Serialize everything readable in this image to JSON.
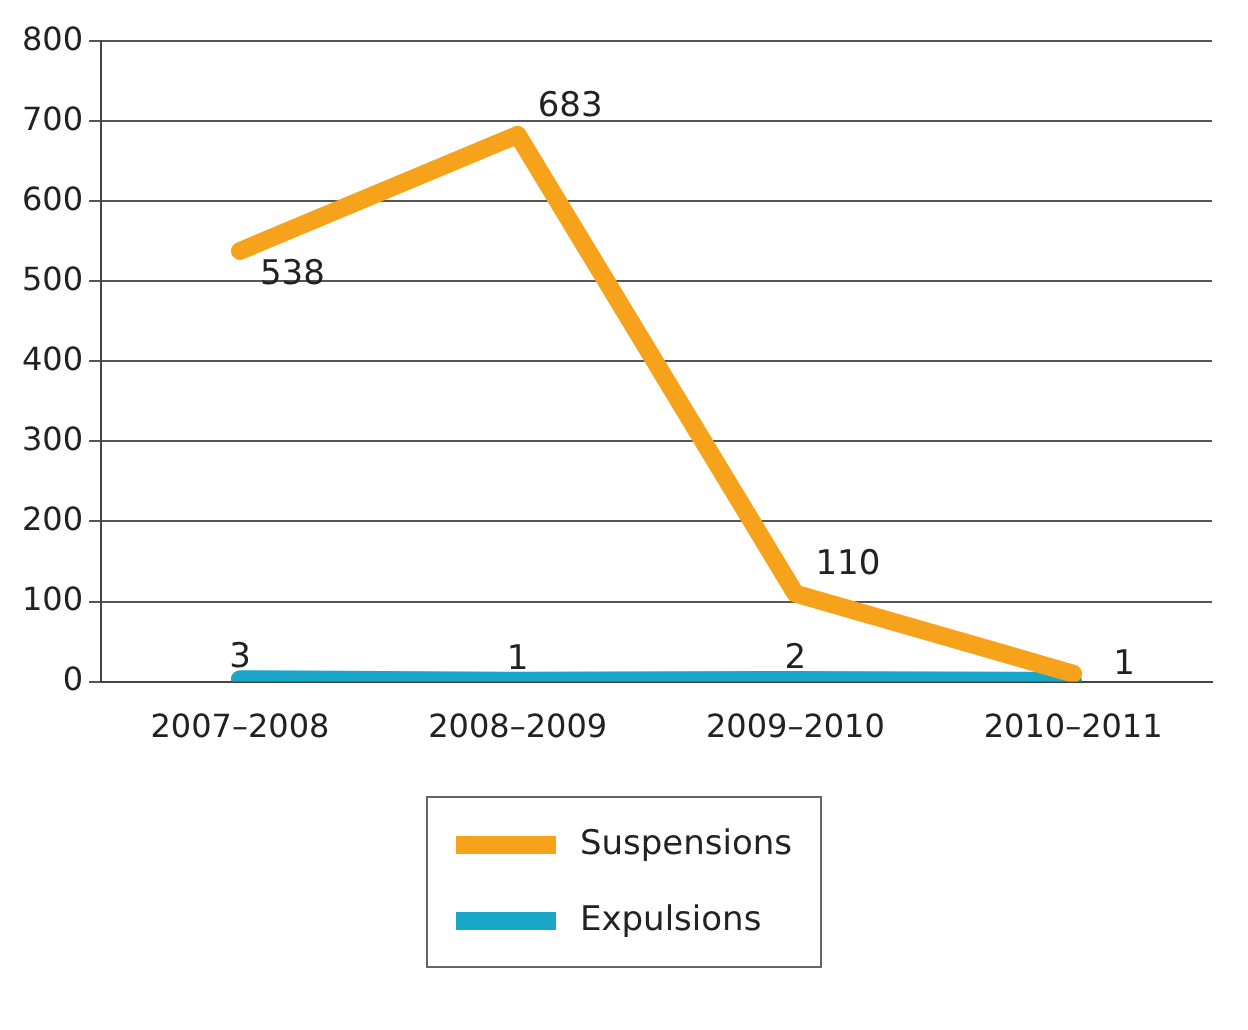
{
  "chart_data": {
    "type": "line",
    "categories": [
      "2007–2008",
      "2008–2009",
      "2009–2010",
      "2010–2011"
    ],
    "series": [
      {
        "name": "Suspensions",
        "color": "#f7a21b",
        "values": [
          538,
          683,
          110,
          10
        ],
        "value_labels": [
          "538",
          "683",
          "110",
          null
        ]
      },
      {
        "name": "Expulsions",
        "color": "#1aa6c8",
        "values": [
          3,
          1,
          2,
          1
        ],
        "value_labels": [
          "3",
          "1",
          "2",
          "1"
        ]
      }
    ],
    "ylim": [
      0,
      800
    ],
    "yticks": [
      0,
      100,
      200,
      300,
      400,
      500,
      600,
      700,
      800
    ],
    "grid": "y",
    "legend": "bottom",
    "marker": "none",
    "line_style": "solid"
  }
}
